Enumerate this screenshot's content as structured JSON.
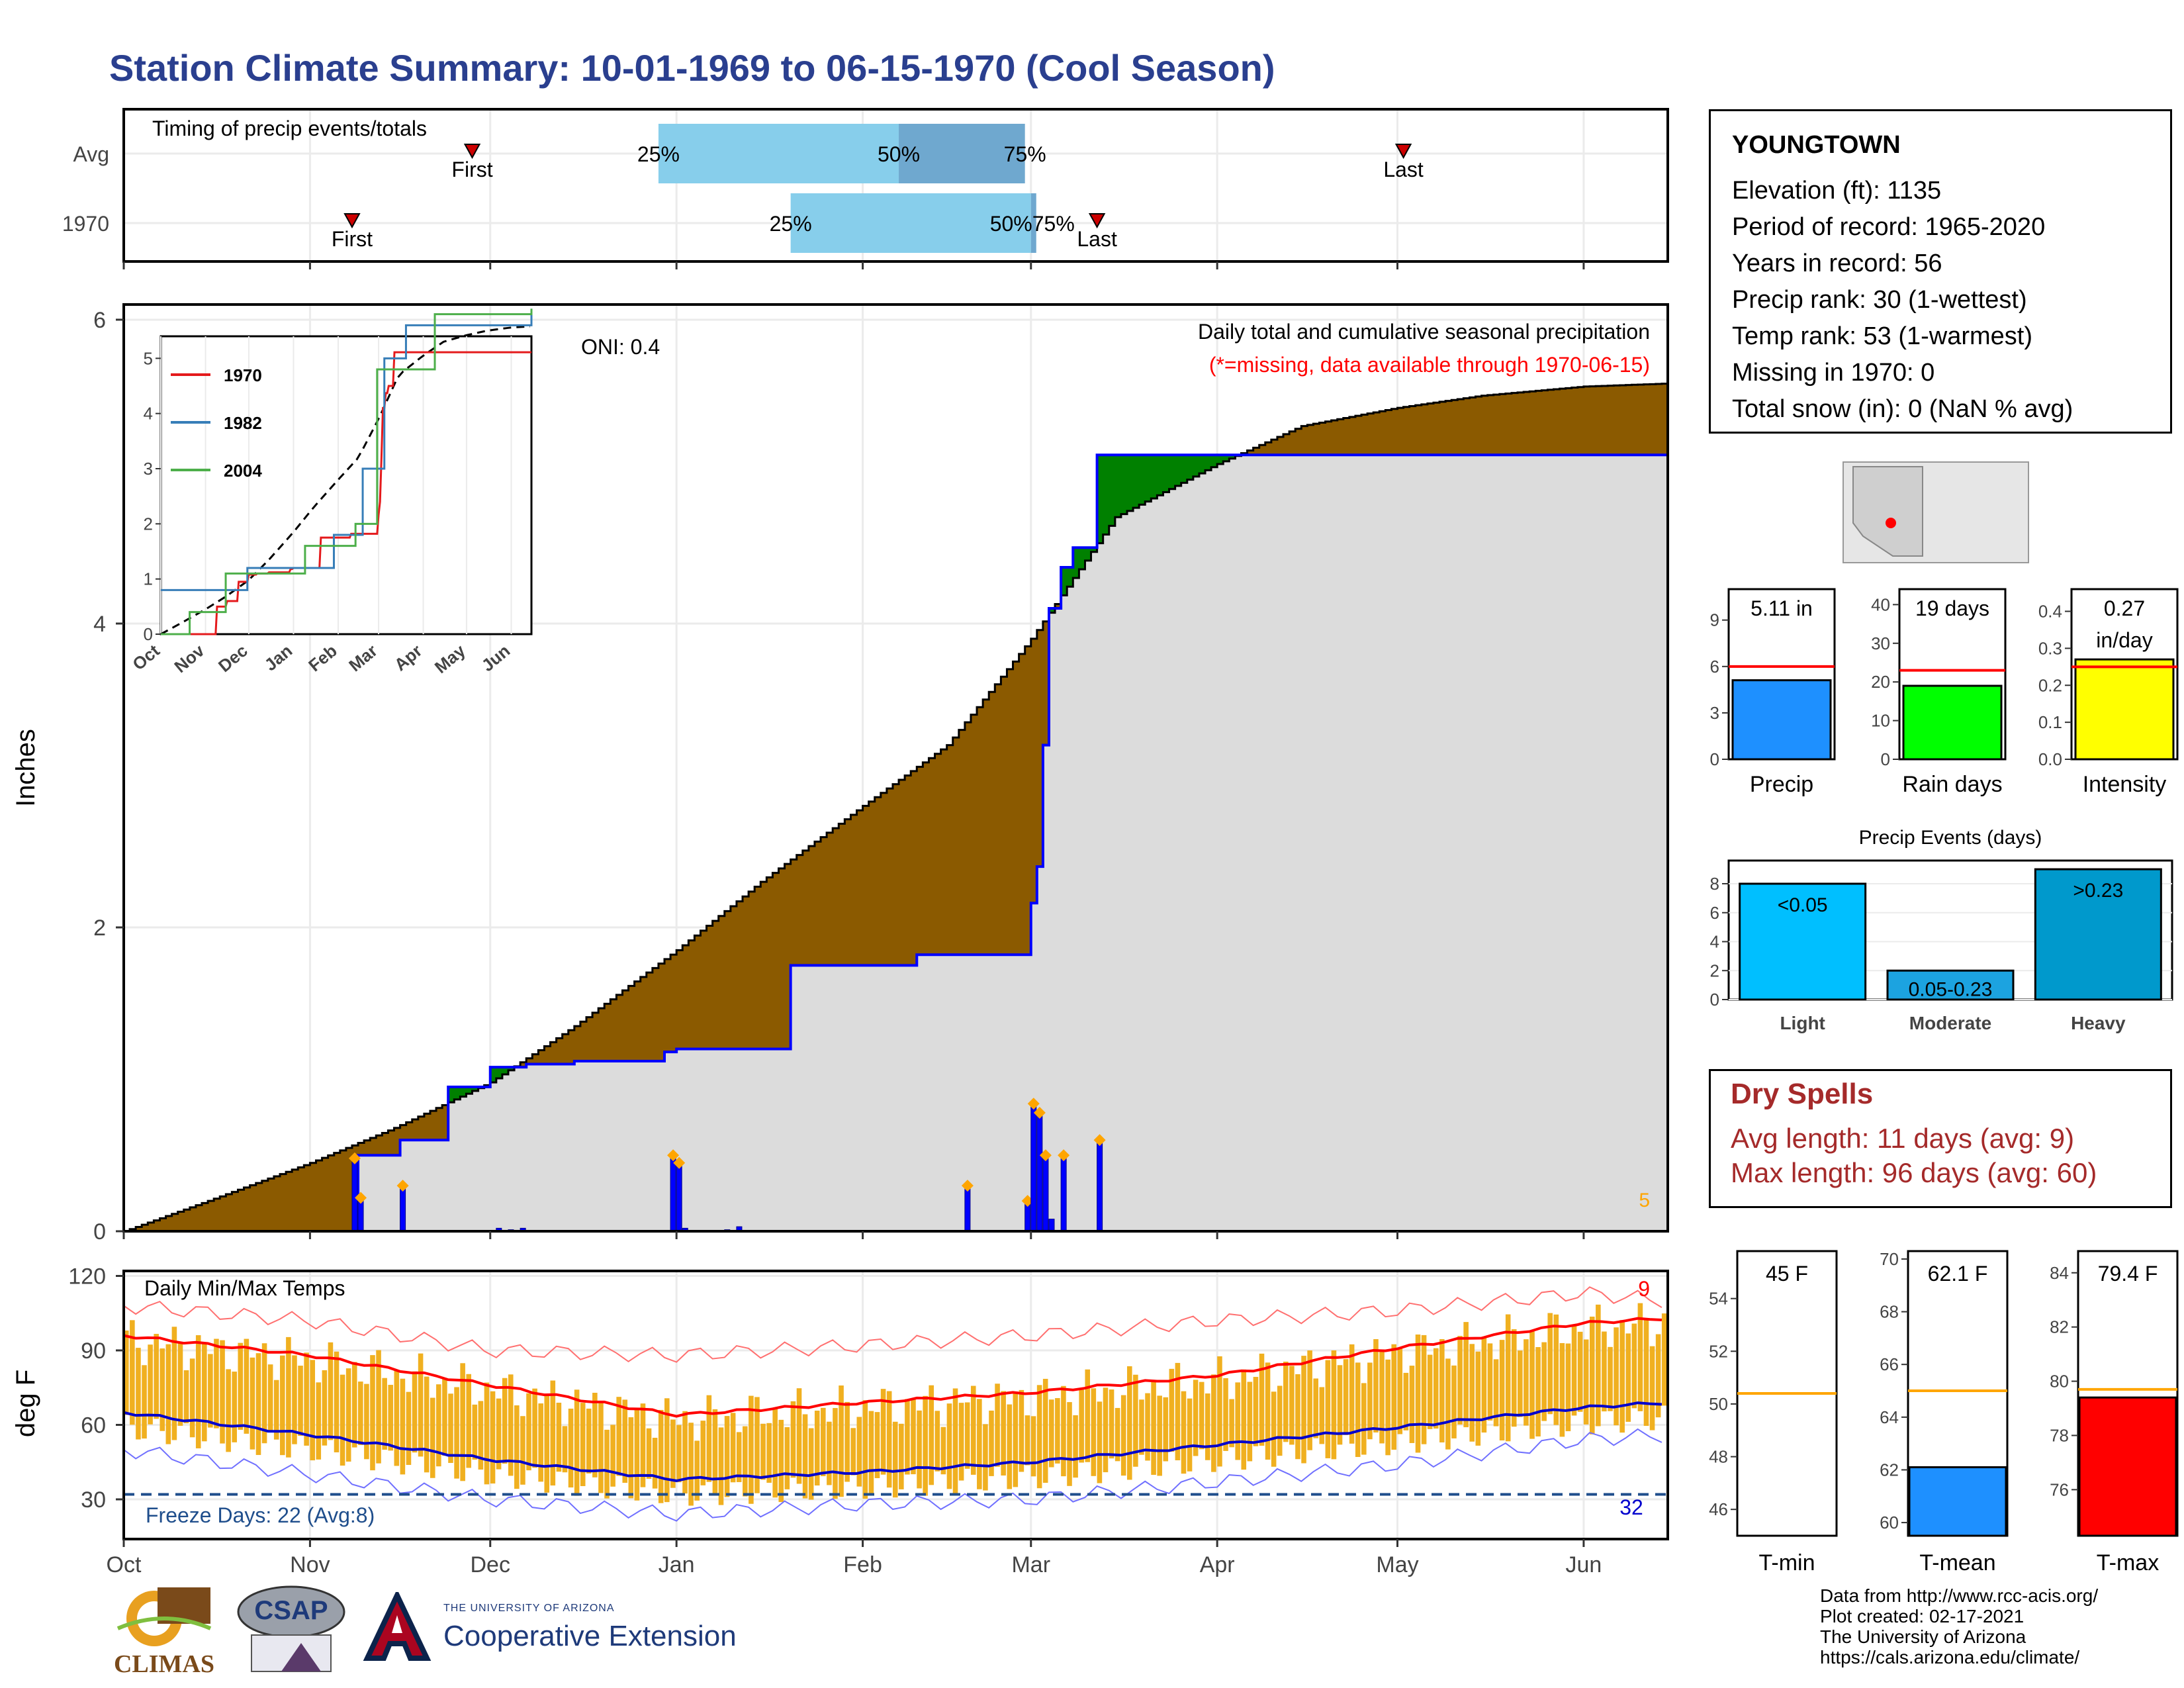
{
  "title": "Station Climate Summary: 10-01-1969 to 06-15-1970 (Cool Season)",
  "timing": {
    "title": "Timing of precip events/totals",
    "rows": [
      "Avg",
      "1970"
    ],
    "first_label": "First",
    "last_label": "Last",
    "avg": {
      "first": "Nov 28",
      "last": "May 2",
      "p25": "Dec 29",
      "p50": "Feb 7",
      "p75": "Feb 28"
    },
    "y1970": {
      "first": "Nov 8",
      "last": "Mar 12",
      "p25": "Jan 20",
      "p50": "Mar 1",
      "p75": "Mar 1"
    },
    "pct_labels": [
      "25%",
      "50%",
      "75%"
    ],
    "pct_label_1970_overlap": "50%75%",
    "bar_colors": {
      "light": "#87ceeb",
      "dark": "#6fa8cf"
    }
  },
  "precip_panel": {
    "ylabel": "Inches",
    "yticks": [
      "0",
      "2",
      "4",
      "6"
    ],
    "ylim": [
      0,
      6.1
    ],
    "oni": "ONI: 0.4",
    "title": "Daily total and cumulative seasonal precipitation",
    "missing_note": "(*=missing, data available through 1970-06-15)",
    "missing_count": "5",
    "colors": {
      "avg_fill": "#8b5a00",
      "above_fill": "#008000",
      "obs_fill": "#dcdcdc",
      "obs_line": "#0000ff",
      "marker": "#ffa500"
    }
  },
  "inset": {
    "yticks": [
      "0",
      "1",
      "2",
      "3",
      "4",
      "5"
    ],
    "months": [
      "Oct",
      "Nov",
      "Dec",
      "Jan",
      "Feb",
      "Mar",
      "Apr",
      "May",
      "Jun"
    ],
    "legend": [
      {
        "label": "1970",
        "color": "#e41a1c"
      },
      {
        "label": "1982",
        "color": "#377eb8"
      },
      {
        "label": "2004",
        "color": "#4daf4a"
      }
    ]
  },
  "temp_panel": {
    "ylabel": "deg F",
    "yticks": [
      "30",
      "60",
      "90",
      "120"
    ],
    "ylim": [
      14,
      122
    ],
    "title": "Daily Min/Max Temps",
    "freeze_label": "Freeze Days: 22 (Avg:8)",
    "freeze_line": "32",
    "record_count": "9",
    "months": [
      "Oct",
      "Nov",
      "Dec",
      "Jan",
      "Feb",
      "Mar",
      "Apr",
      "May",
      "Jun"
    ]
  },
  "station": {
    "name": "YOUNGTOWN",
    "rows": [
      "Elevation (ft): 1135",
      "Period of record: 1965-2020",
      "Years in record: 56",
      "Precip rank: 30 (1-wettest)",
      "Temp rank: 53 (1-warmest)",
      "Missing in 1970: 0",
      "Total snow (in): 0 (NaN % avg)"
    ]
  },
  "mini_bars": [
    {
      "value": 5.11,
      "avg": 6.0,
      "label_top": "5.11 in",
      "xlabel": "Precip",
      "ylim": [
        0,
        11
      ],
      "yticks": [
        "0",
        "3",
        "6",
        "9"
      ],
      "color": "#1e90ff"
    },
    {
      "value": 19,
      "avg": 23,
      "label_top": "19 days",
      "xlabel": "Rain days",
      "ylim": [
        0,
        44
      ],
      "yticks": [
        "0",
        "10",
        "20",
        "30",
        "40"
      ],
      "color": "#00ff00"
    },
    {
      "value": 0.27,
      "avg": 0.25,
      "label_top": "0.27",
      "label_top2": "in/day",
      "xlabel": "Intensity",
      "ylim": [
        0,
        0.46
      ],
      "yticks": [
        "0.0",
        "0.1",
        "0.2",
        "0.3",
        "0.4"
      ],
      "color": "#ffff00"
    }
  ],
  "events": {
    "title": "Precip Events (days)",
    "categories": [
      "Light",
      "Moderate",
      "Heavy"
    ],
    "values": [
      8,
      2,
      9
    ],
    "labels": [
      "<0.05",
      "0.05-0.23",
      ">0.23"
    ],
    "colors": [
      "#00bfff",
      "#1ca3e0",
      "#0099cc"
    ],
    "yticks": [
      "0",
      "2",
      "4",
      "6",
      "8"
    ]
  },
  "dry_spells": {
    "title": "Dry Spells",
    "rows": [
      "Avg length: 11 days (avg: 9)",
      "Max length: 96 days (avg: 60)"
    ]
  },
  "temp_bars": [
    {
      "value": 45,
      "avg": 50.4,
      "label_top": "45 F",
      "xlabel": "T-min",
      "ylim": [
        45,
        55.8
      ],
      "yticks": [
        "46",
        "48",
        "50",
        "52",
        "54"
      ],
      "color": "#ffffff"
    },
    {
      "value": 62.1,
      "avg": 65.0,
      "label_top": "62.1 F",
      "xlabel": "T-mean",
      "ylim": [
        59.5,
        70.3
      ],
      "yticks": [
        "60",
        "62",
        "64",
        "66",
        "68",
        "70"
      ],
      "color": "#1e90ff"
    },
    {
      "value": 79.4,
      "avg": 79.7,
      "label_top": "79.4 F",
      "xlabel": "T-max",
      "ylim": [
        74.3,
        84.8
      ],
      "yticks": [
        "76",
        "78",
        "80",
        "82",
        "84"
      ],
      "color": "#ff0000"
    }
  ],
  "footer": [
    "Data from http://www.rcc-acis.org/",
    "Plot created: 02-17-2021",
    "The University of Arizona",
    "https://cals.arizona.edu/climate/"
  ],
  "logos": {
    "climas": "CLIMAS",
    "csap": "CSAP",
    "ua_small": "THE UNIVERSITY OF ARIZONA",
    "ua_big": "Cooperative Extension"
  },
  "chart_data": [
    {
      "type": "area",
      "title": "Daily total and cumulative seasonal precipitation",
      "ylabel": "Inches",
      "ylim": [
        0,
        6.1
      ],
      "x_range": [
        "1969-10-01",
        "1970-06-15"
      ],
      "cumulative_avg": {
        "x": [
          "1969-10-01",
          "1969-10-15",
          "1969-11-01",
          "1969-11-15",
          "1969-12-01",
          "1969-12-15",
          "1970-01-01",
          "1970-01-15",
          "1970-02-01",
          "1970-02-15",
          "1970-03-01",
          "1970-03-15",
          "1970-04-01",
          "1970-04-15",
          "1970-05-01",
          "1970-05-15",
          "1970-06-01",
          "1970-06-15"
        ],
        "y": [
          0,
          0.2,
          0.45,
          0.68,
          0.98,
          1.35,
          1.85,
          2.3,
          2.8,
          3.2,
          3.9,
          4.7,
          5.05,
          5.3,
          5.42,
          5.5,
          5.56,
          5.58
        ]
      },
      "cumulative_1970": {
        "x": [
          "1969-10-01",
          "1969-11-08",
          "1969-11-09",
          "1969-11-16",
          "1969-11-24",
          "1969-12-01",
          "1969-12-07",
          "1969-12-15",
          "1969-12-30",
          "1970-01-01",
          "1970-01-10",
          "1970-01-20",
          "1970-02-10",
          "1970-02-28",
          "1970-03-01",
          "1970-03-02",
          "1970-03-03",
          "1970-03-04",
          "1970-03-06",
          "1970-03-08",
          "1970-03-12",
          "1970-06-15"
        ],
        "y": [
          0,
          0,
          0.5,
          0.6,
          0.95,
          1.08,
          1.1,
          1.12,
          1.18,
          1.2,
          1.2,
          1.75,
          1.82,
          1.82,
          2.16,
          2.4,
          3.2,
          4.1,
          4.37,
          4.5,
          5.11,
          5.11
        ]
      },
      "daily_precip": [
        {
          "x": "1969-11-08",
          "y": 0.48
        },
        {
          "x": "1969-11-09",
          "y": 0.22
        },
        {
          "x": "1969-11-16",
          "y": 0.3
        },
        {
          "x": "1969-12-02",
          "y": 0.02
        },
        {
          "x": "1969-12-04",
          "y": 0.01
        },
        {
          "x": "1969-12-06",
          "y": 0.02
        },
        {
          "x": "1969-12-31",
          "y": 0.5
        },
        {
          "x": "1970-01-01",
          "y": 0.45
        },
        {
          "x": "1970-01-02",
          "y": 0.02
        },
        {
          "x": "1970-01-09",
          "y": 0.01
        },
        {
          "x": "1970-01-11",
          "y": 0.03
        },
        {
          "x": "1970-02-18",
          "y": 0.3
        },
        {
          "x": "1970-02-28",
          "y": 0.2
        },
        {
          "x": "1970-03-01",
          "y": 0.84
        },
        {
          "x": "1970-03-02",
          "y": 0.78
        },
        {
          "x": "1970-03-03",
          "y": 0.5
        },
        {
          "x": "1970-03-04",
          "y": 0.08
        },
        {
          "x": "1970-03-06",
          "y": 0.5
        },
        {
          "x": "1970-03-12",
          "y": 0.6
        }
      ]
    },
    {
      "type": "line",
      "title": "Daily Min/Max Temps",
      "ylabel": "deg F",
      "ylim": [
        14,
        122
      ],
      "x": [
        "1969-10-01",
        "1969-11-01",
        "1969-12-01",
        "1970-01-01",
        "1970-02-01",
        "1970-03-01",
        "1970-04-01",
        "1970-05-01",
        "1970-06-01",
        "1970-06-15"
      ],
      "series": [
        {
          "values": [
            96,
            88,
            76,
            64,
            69,
            73,
            80,
            91,
            101,
            103
          ]
        },
        {
          "values": [
            65,
            56,
            46,
            38,
            41,
            45,
            52,
            59,
            67,
            69
          ]
        },
        {
          "values": [
            108,
            102,
            90,
            88,
            92,
            96,
            102,
            106,
            113,
            110
          ]
        },
        {
          "values": [
            50,
            40,
            30,
            24,
            28,
            30,
            37,
            44,
            54,
            56
          ]
        }
      ],
      "freeze_threshold": 32
    },
    {
      "type": "bar",
      "title": "Precip Events (days)",
      "categories": [
        "Light",
        "Moderate",
        "Heavy"
      ],
      "values": [
        8,
        2,
        9
      ]
    }
  ]
}
